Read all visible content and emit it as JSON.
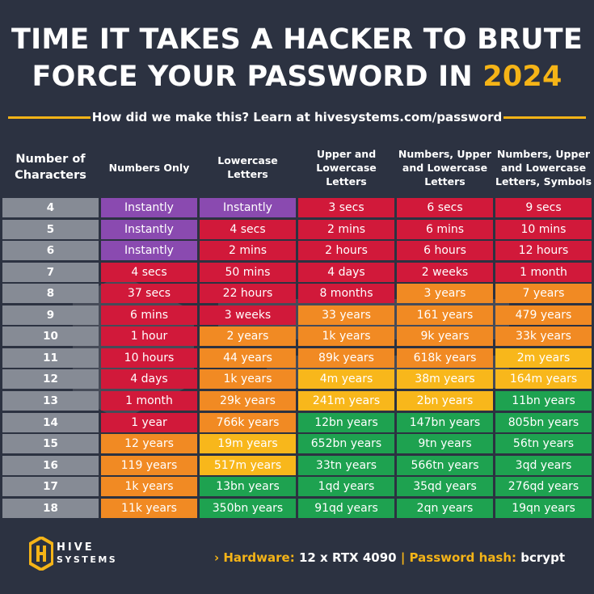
{
  "title": {
    "line1": "TIME IT TAKES A HACKER TO BRUTE",
    "line2_prefix": "FORCE YOUR PASSWORD IN ",
    "year": "2024"
  },
  "subtitle": "How did we make this? Learn at hivesystems.com/password",
  "footer": {
    "chevron": "›",
    "hardware_label": "Hardware:",
    "hardware_value": "12 x RTX 4090",
    "separator": "|",
    "hash_label": "Password hash:",
    "hash_value": "bcrypt"
  },
  "logo": {
    "word1": "HIVE",
    "word2": "SYSTEMS",
    "icon": "hive-hexagon-logo"
  },
  "colors": {
    "purple": "#8a4ab0",
    "red": "#d1193a",
    "orange": "#f18a23",
    "yellow": "#f8b71b",
    "green": "#1ea250",
    "accent": "#f5b417",
    "background": "#2c3241",
    "number_cell": "#868b95"
  },
  "chart_data": {
    "type": "table",
    "columns": [
      [
        "Number of",
        "Characters"
      ],
      [
        "Numbers Only"
      ],
      [
        "Lowercase",
        "Letters"
      ],
      [
        "Upper and",
        "Lowercase",
        "Letters"
      ],
      [
        "Numbers, Upper",
        "and Lowercase",
        "Letters"
      ],
      [
        "Numbers, Upper",
        "and Lowercase",
        "Letters, Symbols"
      ]
    ],
    "rows": [
      {
        "n": "4",
        "values": [
          "Instantly",
          "Instantly",
          "3 secs",
          "6 secs",
          "9 secs"
        ],
        "levels": [
          "purple",
          "purple",
          "red",
          "red",
          "red"
        ]
      },
      {
        "n": "5",
        "values": [
          "Instantly",
          "4 secs",
          "2 mins",
          "6 mins",
          "10 mins"
        ],
        "levels": [
          "purple",
          "red",
          "red",
          "red",
          "red"
        ]
      },
      {
        "n": "6",
        "values": [
          "Instantly",
          "2 mins",
          "2 hours",
          "6 hours",
          "12 hours"
        ],
        "levels": [
          "purple",
          "red",
          "red",
          "red",
          "red"
        ]
      },
      {
        "n": "7",
        "values": [
          "4 secs",
          "50 mins",
          "4 days",
          "2 weeks",
          "1 month"
        ],
        "levels": [
          "red",
          "red",
          "red",
          "red",
          "red"
        ]
      },
      {
        "n": "8",
        "values": [
          "37 secs",
          "22 hours",
          "8 months",
          "3 years",
          "7 years"
        ],
        "levels": [
          "red",
          "red",
          "red",
          "orange",
          "orange"
        ]
      },
      {
        "n": "9",
        "values": [
          "6 mins",
          "3 weeks",
          "33 years",
          "161 years",
          "479 years"
        ],
        "levels": [
          "red",
          "red",
          "orange",
          "orange",
          "orange"
        ]
      },
      {
        "n": "10",
        "values": [
          "1 hour",
          "2 years",
          "1k years",
          "9k years",
          "33k years"
        ],
        "levels": [
          "red",
          "orange",
          "orange",
          "orange",
          "orange"
        ]
      },
      {
        "n": "11",
        "values": [
          "10 hours",
          "44 years",
          "89k years",
          "618k years",
          "2m years"
        ],
        "levels": [
          "red",
          "orange",
          "orange",
          "orange",
          "yellow"
        ]
      },
      {
        "n": "12",
        "values": [
          "4 days",
          "1k years",
          "4m years",
          "38m years",
          "164m years"
        ],
        "levels": [
          "red",
          "orange",
          "yellow",
          "yellow",
          "yellow"
        ]
      },
      {
        "n": "13",
        "values": [
          "1 month",
          "29k years",
          "241m years",
          "2bn years",
          "11bn years"
        ],
        "levels": [
          "red",
          "orange",
          "yellow",
          "yellow",
          "green"
        ]
      },
      {
        "n": "14",
        "values": [
          "1 year",
          "766k years",
          "12bn years",
          "147bn years",
          "805bn years"
        ],
        "levels": [
          "red",
          "orange",
          "green",
          "green",
          "green"
        ]
      },
      {
        "n": "15",
        "values": [
          "12 years",
          "19m years",
          "652bn years",
          "9tn years",
          "56tn years"
        ],
        "levels": [
          "orange",
          "yellow",
          "green",
          "green",
          "green"
        ]
      },
      {
        "n": "16",
        "values": [
          "119 years",
          "517m years",
          "33tn years",
          "566tn years",
          "3qd years"
        ],
        "levels": [
          "orange",
          "yellow",
          "green",
          "green",
          "green"
        ]
      },
      {
        "n": "17",
        "values": [
          "1k years",
          "13bn years",
          "1qd years",
          "35qd years",
          "276qd years"
        ],
        "levels": [
          "orange",
          "green",
          "green",
          "green",
          "green"
        ]
      },
      {
        "n": "18",
        "values": [
          "11k years",
          "350bn years",
          "91qd years",
          "2qn years",
          "19qn years"
        ],
        "levels": [
          "orange",
          "green",
          "green",
          "green",
          "green"
        ]
      }
    ]
  }
}
